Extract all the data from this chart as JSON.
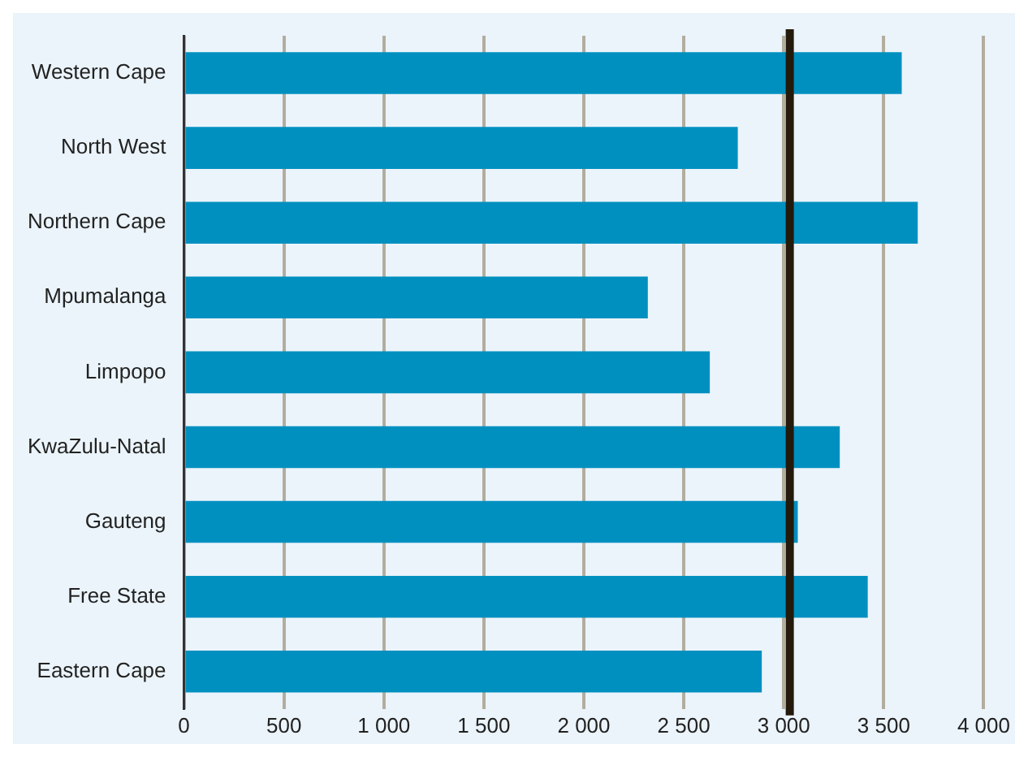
{
  "chart_data": {
    "type": "bar",
    "orientation": "horizontal",
    "categories": [
      "Western Cape",
      "North West",
      "Northern Cape",
      "Mpumalanga",
      "Limpopo",
      "KwaZulu-Natal",
      "Gauteng",
      "Free State",
      "Eastern Cape"
    ],
    "values": [
      3590,
      2770,
      3670,
      2320,
      2630,
      3280,
      3070,
      3420,
      2890
    ],
    "color": "#0090c0",
    "xlim": [
      0,
      4000
    ],
    "xticks": [
      0,
      {
        "value": 500,
        "label": "500"
      },
      {
        "value": 1000,
        "label": "1 000"
      },
      {
        "value": 1500,
        "label": "1 500"
      },
      {
        "value": 2000,
        "label": "2 000"
      },
      {
        "value": 2500,
        "label": "2 500"
      },
      {
        "value": 3000,
        "label": "3 000"
      },
      {
        "value": 3500,
        "label": "3 500"
      },
      {
        "value": 4000,
        "label": "4 000"
      }
    ],
    "ref_lines": [
      {
        "axis": "x",
        "value": 3030,
        "color": "#231a0c"
      }
    ],
    "grid": "x",
    "legend": false
  }
}
